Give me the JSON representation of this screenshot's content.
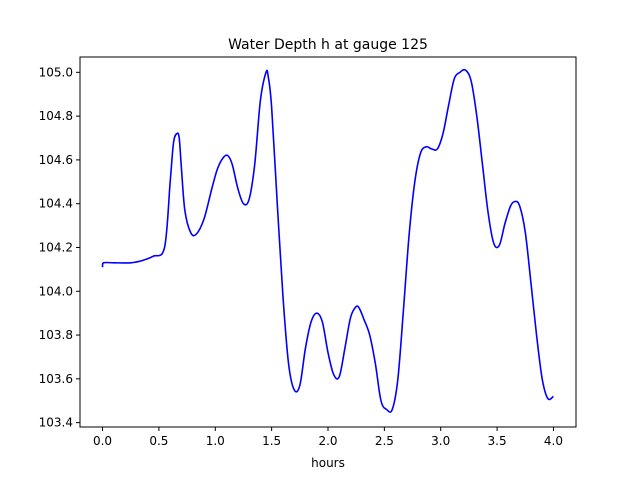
{
  "chart_data": {
    "type": "line",
    "title": "Water Depth h at gauge 125",
    "xlabel": "hours",
    "ylabel": "",
    "xlim": [
      -0.2,
      4.2
    ],
    "ylim": [
      103.38,
      105.07
    ],
    "xticks": [
      0.0,
      0.5,
      1.0,
      1.5,
      2.0,
      2.5,
      3.0,
      3.5,
      4.0
    ],
    "xtick_labels": [
      "0.0",
      "0.5",
      "1.0",
      "1.5",
      "2.0",
      "2.5",
      "3.0",
      "3.5",
      "4.0"
    ],
    "yticks": [
      103.4,
      103.6,
      103.8,
      104.0,
      104.2,
      104.4,
      104.6,
      104.8,
      105.0
    ],
    "ytick_labels": [
      "103.4",
      "103.6",
      "103.8",
      "104.0",
      "104.2",
      "104.4",
      "104.6",
      "104.8",
      "105.0"
    ],
    "grid": false,
    "line_color": "#0000ff",
    "series": [
      {
        "name": "",
        "x": [
          0.0,
          0.01,
          0.1,
          0.25,
          0.35,
          0.45,
          0.55,
          0.6,
          0.63,
          0.66,
          0.68,
          0.7,
          0.73,
          0.78,
          0.83,
          0.9,
          0.97,
          1.02,
          1.07,
          1.11,
          1.15,
          1.2,
          1.25,
          1.3,
          1.35,
          1.4,
          1.45,
          1.47,
          1.5,
          1.55,
          1.6,
          1.65,
          1.7,
          1.75,
          1.8,
          1.85,
          1.9,
          1.95,
          2.0,
          2.05,
          2.1,
          2.15,
          2.2,
          2.25,
          2.28,
          2.32,
          2.37,
          2.42,
          2.47,
          2.52,
          2.57,
          2.62,
          2.67,
          2.72,
          2.77,
          2.82,
          2.87,
          2.92,
          2.97,
          3.02,
          3.07,
          3.12,
          3.17,
          3.22,
          3.27,
          3.32,
          3.37,
          3.42,
          3.47,
          3.52,
          3.57,
          3.62,
          3.66,
          3.7,
          3.75,
          3.8,
          3.85,
          3.9,
          3.95,
          4.0
        ],
        "values": [
          104.11,
          104.13,
          104.13,
          104.13,
          104.14,
          104.16,
          104.2,
          104.5,
          104.68,
          104.72,
          104.7,
          104.56,
          104.37,
          104.27,
          104.26,
          104.33,
          104.47,
          104.56,
          104.61,
          104.62,
          104.58,
          104.47,
          104.4,
          104.42,
          104.58,
          104.87,
          105.0,
          104.98,
          104.84,
          104.4,
          103.98,
          103.67,
          103.55,
          103.57,
          103.74,
          103.86,
          103.9,
          103.86,
          103.72,
          103.62,
          103.61,
          103.74,
          103.88,
          103.93,
          103.92,
          103.87,
          103.8,
          103.67,
          103.5,
          103.46,
          103.46,
          103.6,
          103.92,
          104.26,
          104.5,
          104.63,
          104.66,
          104.65,
          104.65,
          104.72,
          104.85,
          104.97,
          105.0,
          105.01,
          104.96,
          104.8,
          104.58,
          104.36,
          104.22,
          104.21,
          104.31,
          104.39,
          104.41,
          104.39,
          104.27,
          104.04,
          103.8,
          103.6,
          103.51,
          103.52
        ]
      }
    ]
  }
}
